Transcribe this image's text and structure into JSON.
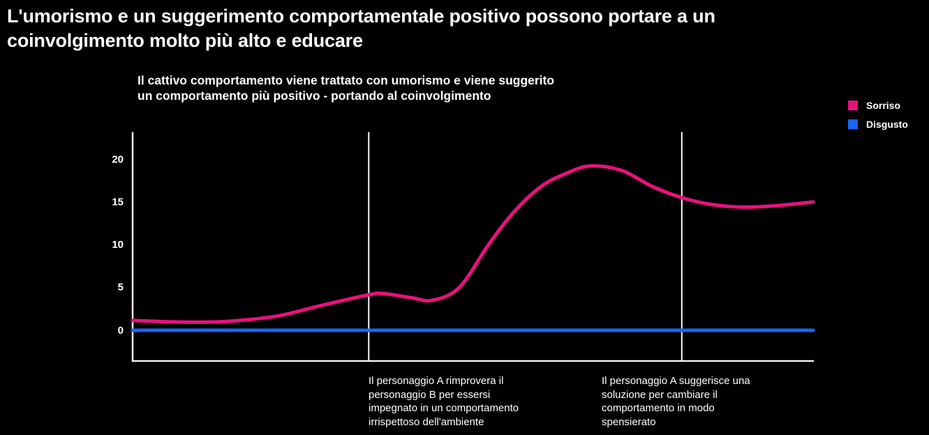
{
  "title": "L'umorismo e un suggerimento comportamentale positivo possono portare a un coinvolgimento molto più alto e educare",
  "subtitle": "Il cattivo comportamento viene trattato con umorismo e viene suggerito un comportamento più positivo - portando al coinvolgimento",
  "legend": [
    {
      "label": "Sorriso",
      "color": "#e8117f"
    },
    {
      "label": "Disgusto",
      "color": "#1a66f2"
    }
  ],
  "annotations": [
    {
      "text": "Il personaggio A rimprovera il personaggio B per essersi impegnato in un comportamento irrispettoso dell'ambiente"
    },
    {
      "text": "Il personaggio A suggerisce una soluzione per cambiare il comportamento in modo spensierato"
    }
  ],
  "colors": {
    "background": "#000000",
    "text": "#ffffff",
    "axis": "#efefef",
    "event_line": "#fafafa",
    "sorriso": "#e8117f",
    "disgusto": "#1a66f2"
  },
  "chart_data": {
    "type": "line",
    "title": "",
    "xlabel": "",
    "ylabel": "",
    "xlim": [
      0,
      1
    ],
    "ylim": [
      -3.7,
      23.1
    ],
    "yticks": [
      0,
      5,
      10,
      15,
      20
    ],
    "grid": false,
    "legend_position": "top-right",
    "event_lines_x": [
      0.347,
      0.807
    ],
    "series": [
      {
        "name": "Sorriso",
        "color": "#e8117f",
        "smooth": true,
        "x": [
          0,
          0.05,
          0.1,
          0.15,
          0.215,
          0.277,
          0.347,
          0.367,
          0.41,
          0.44,
          0.48,
          0.523,
          0.56,
          0.6,
          0.636,
          0.672,
          0.718,
          0.764,
          0.807,
          0.851,
          0.897,
          0.944,
          1.0
        ],
        "y": [
          1.15,
          1.0,
          0.95,
          1.1,
          1.7,
          2.9,
          4.15,
          4.3,
          3.8,
          3.5,
          5.0,
          10.0,
          13.8,
          16.8,
          18.3,
          19.2,
          18.7,
          16.8,
          15.5,
          14.7,
          14.4,
          14.55,
          15.0
        ]
      },
      {
        "name": "Disgusto",
        "color": "#1a66f2",
        "smooth": false,
        "x": [
          0,
          1
        ],
        "y": [
          0,
          0
        ]
      }
    ]
  }
}
